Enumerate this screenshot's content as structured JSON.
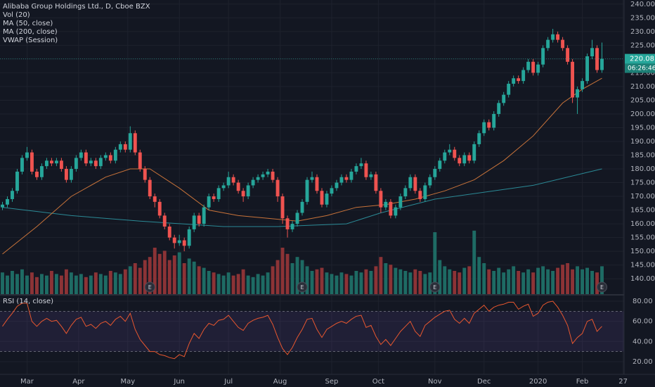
{
  "chart_data": {
    "type": "candlestick",
    "title": "Alibaba Group Holdings Ltd., D, Cboe BZX",
    "indicators": [
      "Vol (20)",
      "MA (50, close)",
      "MA (200, close)",
      "VWAP (Session)"
    ],
    "up_color": "#26a69a",
    "down_color": "#ef5350",
    "volume_up_color": "#1e6b64",
    "volume_down_color": "#8c3336",
    "xlim": [
      -0.5,
      126.5
    ],
    "xticks": [
      {
        "value": 5,
        "label": "Mar"
      },
      {
        "value": 15.5,
        "label": "Apr"
      },
      {
        "value": 25.5,
        "label": "May"
      },
      {
        "value": 36,
        "label": "Jun"
      },
      {
        "value": 46,
        "label": "Jul"
      },
      {
        "value": 56.5,
        "label": "Aug"
      },
      {
        "value": 67,
        "label": "Sep"
      },
      {
        "value": 76.5,
        "label": "Oct"
      },
      {
        "value": 88,
        "label": "Nov"
      },
      {
        "value": 98,
        "label": "Dec"
      },
      {
        "value": 109,
        "label": "2020"
      },
      {
        "value": 118,
        "label": "Feb"
      },
      {
        "value": 126.3,
        "label": "27"
      }
    ],
    "ylim": [
      134.4,
      241.5
    ],
    "yticks": [
      {
        "value": 140,
        "label": "140.00"
      },
      {
        "value": 145,
        "label": "145.00"
      },
      {
        "value": 150,
        "label": "150.00"
      },
      {
        "value": 155,
        "label": "155.00"
      },
      {
        "value": 160,
        "label": "160.00"
      },
      {
        "value": 165,
        "label": "165.00"
      },
      {
        "value": 170,
        "label": "170.00"
      },
      {
        "value": 175,
        "label": "175.00"
      },
      {
        "value": 180,
        "label": "180.00"
      },
      {
        "value": 185,
        "label": "185.00"
      },
      {
        "value": 190,
        "label": "190.00"
      },
      {
        "value": 195,
        "label": "195.00"
      },
      {
        "value": 200,
        "label": "200.00"
      },
      {
        "value": 205,
        "label": "205.00"
      },
      {
        "value": 210,
        "label": "210.00"
      },
      {
        "value": 215,
        "label": "215.00"
      },
      {
        "value": 220,
        "label": "220.00"
      },
      {
        "value": 225,
        "label": "225.00"
      },
      {
        "value": 230,
        "label": "230.00"
      },
      {
        "value": 235,
        "label": "235.00"
      },
      {
        "value": 240,
        "label": "240.00"
      }
    ],
    "grid": true,
    "candles": [
      [
        166,
        168,
        165,
        167
      ],
      [
        167,
        170,
        166,
        169
      ],
      [
        169,
        173,
        168,
        172
      ],
      [
        172,
        180,
        171,
        179
      ],
      [
        179,
        185,
        178,
        184
      ],
      [
        184,
        188,
        183,
        186
      ],
      [
        186,
        187,
        178,
        179
      ],
      [
        179,
        180,
        176,
        177
      ],
      [
        177,
        182,
        176,
        181
      ],
      [
        181,
        184,
        180,
        183
      ],
      [
        183,
        184,
        181,
        182
      ],
      [
        182,
        184,
        181,
        183
      ],
      [
        183,
        184,
        179,
        180
      ],
      [
        180,
        181,
        175,
        176
      ],
      [
        176,
        181,
        175,
        180
      ],
      [
        180,
        185,
        179,
        184
      ],
      [
        184,
        187,
        183,
        186
      ],
      [
        186,
        187,
        181,
        182
      ],
      [
        182,
        184,
        181,
        183
      ],
      [
        183,
        184,
        180,
        181
      ],
      [
        181,
        185,
        180,
        184
      ],
      [
        184,
        186,
        183,
        185
      ],
      [
        185,
        186,
        182,
        183
      ],
      [
        183,
        188,
        182,
        187
      ],
      [
        187,
        190,
        186,
        189
      ],
      [
        189,
        190,
        186,
        187
      ],
      [
        187,
        195.5,
        186,
        193
      ],
      [
        193,
        194,
        185,
        186
      ],
      [
        186,
        187,
        179,
        180
      ],
      [
        180,
        181,
        175,
        176
      ],
      [
        176,
        177,
        169,
        170
      ],
      [
        170,
        171,
        166,
        168
      ],
      [
        168,
        169,
        162,
        163
      ],
      [
        163,
        164,
        158,
        159
      ],
      [
        159,
        160,
        154,
        155
      ],
      [
        155,
        156,
        151,
        153
      ],
      [
        153,
        156,
        152,
        154
      ],
      [
        154,
        155,
        150,
        152
      ],
      [
        152,
        159,
        151,
        158
      ],
      [
        158,
        164,
        157,
        163
      ],
      [
        163,
        164,
        159,
        160
      ],
      [
        160,
        167,
        159,
        166
      ],
      [
        166,
        171,
        165,
        170
      ],
      [
        170,
        171,
        168,
        169
      ],
      [
        169,
        174,
        168,
        173
      ],
      [
        173,
        175,
        172,
        174
      ],
      [
        174,
        179,
        173,
        177
      ],
      [
        177,
        178,
        174,
        175
      ],
      [
        175,
        176,
        171,
        172
      ],
      [
        172,
        173,
        168,
        170
      ],
      [
        170,
        175,
        169,
        174
      ],
      [
        174,
        177,
        173,
        176
      ],
      [
        176,
        178,
        175,
        177
      ],
      [
        177,
        179,
        176,
        178
      ],
      [
        178,
        180,
        177,
        179
      ],
      [
        179,
        180,
        175,
        176
      ],
      [
        176,
        177,
        168,
        170
      ],
      [
        170,
        171,
        160,
        162
      ],
      [
        162,
        163,
        155,
        158
      ],
      [
        158,
        161,
        157,
        160
      ],
      [
        160,
        165,
        159,
        164
      ],
      [
        164,
        169,
        163,
        168
      ],
      [
        168,
        177,
        167,
        176
      ],
      [
        176,
        179,
        175,
        177
      ],
      [
        177,
        178,
        171,
        172
      ],
      [
        172,
        173,
        166,
        167
      ],
      [
        167,
        172,
        166,
        171
      ],
      [
        171,
        174,
        170,
        173
      ],
      [
        173,
        176,
        172,
        175
      ],
      [
        175,
        178,
        174,
        177
      ],
      [
        177,
        178,
        175,
        176
      ],
      [
        176,
        180,
        175,
        179
      ],
      [
        179,
        182,
        178,
        181
      ],
      [
        181,
        184,
        180,
        182
      ],
      [
        182,
        183,
        176,
        177
      ],
      [
        177,
        179,
        176,
        178
      ],
      [
        178,
        179,
        171,
        172
      ],
      [
        172,
        173,
        164,
        166
      ],
      [
        166,
        169,
        165,
        168
      ],
      [
        168,
        169,
        162,
        163
      ],
      [
        163,
        167,
        162,
        166
      ],
      [
        166,
        171,
        165,
        170
      ],
      [
        170,
        174,
        169,
        173
      ],
      [
        173,
        178,
        172,
        177
      ],
      [
        177,
        178,
        171,
        172
      ],
      [
        172,
        173,
        168,
        169
      ],
      [
        169,
        175,
        168,
        174
      ],
      [
        174,
        178,
        173,
        177
      ],
      [
        177,
        181,
        176,
        180
      ],
      [
        180,
        184,
        179,
        183
      ],
      [
        183,
        187,
        182,
        186
      ],
      [
        186,
        189,
        185,
        187
      ],
      [
        187,
        188,
        183,
        184
      ],
      [
        184,
        185,
        181,
        182
      ],
      [
        182,
        186,
        181,
        185
      ],
      [
        185,
        186,
        182,
        183
      ],
      [
        183,
        190,
        182,
        189
      ],
      [
        189,
        194,
        188,
        193
      ],
      [
        193,
        198,
        192,
        197
      ],
      [
        197,
        198,
        194,
        195
      ],
      [
        195,
        201,
        194,
        200
      ],
      [
        200,
        205,
        199,
        204
      ],
      [
        204,
        208,
        203,
        207
      ],
      [
        207,
        212,
        206,
        211
      ],
      [
        211,
        214,
        210,
        213
      ],
      [
        213,
        214,
        211,
        212
      ],
      [
        212,
        217,
        211,
        216
      ],
      [
        216,
        220,
        215,
        219
      ],
      [
        219,
        220,
        214,
        215
      ],
      [
        215,
        219,
        214,
        218
      ],
      [
        218,
        225,
        217,
        224
      ],
      [
        224,
        228,
        223,
        227
      ],
      [
        227,
        231,
        226,
        229
      ],
      [
        229,
        230,
        226,
        227
      ],
      [
        227,
        228,
        223,
        224
      ],
      [
        224,
        225,
        218,
        219
      ],
      [
        219,
        220,
        204,
        206
      ],
      [
        206,
        210,
        200,
        209
      ],
      [
        209,
        213,
        208,
        212
      ],
      [
        212,
        222,
        211,
        221
      ],
      [
        221,
        227,
        220,
        224
      ],
      [
        224,
        225,
        215,
        216
      ],
      [
        216,
        226,
        215,
        220.08
      ]
    ],
    "volume": {
      "ylim": [
        0,
        50
      ],
      "values": [
        14,
        12,
        15,
        13,
        16,
        12,
        14,
        11,
        13,
        12,
        15,
        13,
        12,
        16,
        14,
        12,
        13,
        11,
        12,
        14,
        13,
        12,
        15,
        14,
        13,
        16,
        18,
        20,
        17,
        22,
        24,
        30,
        26,
        28,
        22,
        25,
        27,
        20,
        23,
        21,
        18,
        17,
        15,
        14,
        13,
        12,
        14,
        12,
        13,
        16,
        12,
        11,
        13,
        12,
        14,
        18,
        22,
        30,
        26,
        20,
        24,
        22,
        18,
        15,
        16,
        17,
        14,
        13,
        12,
        14,
        13,
        12,
        15,
        14,
        16,
        15,
        18,
        24,
        20,
        19,
        17,
        16,
        15,
        14,
        16,
        15,
        13,
        14,
        40,
        22,
        18,
        16,
        15,
        14,
        17,
        18,
        41,
        24,
        20,
        16,
        15,
        17,
        14,
        16,
        18,
        15,
        14,
        16,
        14,
        17,
        18,
        16,
        15,
        17,
        19,
        20,
        16,
        18,
        16,
        17,
        15,
        14,
        18
      ]
    },
    "ma50": {
      "color": "#c8733a",
      "x": [
        0,
        7,
        14,
        21,
        26,
        30,
        36,
        42,
        48,
        54,
        60,
        66,
        72,
        78,
        84,
        90,
        96,
        102,
        108,
        114,
        118,
        122
      ],
      "values": [
        149,
        159,
        170,
        177,
        180,
        180,
        173,
        165,
        163,
        162,
        161,
        163,
        166,
        167,
        169,
        172,
        176,
        183,
        192,
        204,
        209,
        213
      ]
    },
    "ma200": {
      "color": "#2b8a96",
      "x": [
        0,
        14,
        28,
        45,
        56,
        70,
        77,
        88,
        108,
        122
      ],
      "values": [
        166,
        163,
        161,
        159,
        159,
        160,
        164,
        169,
        174,
        180
      ]
    },
    "countdown": "06:26:46",
    "last_price_color": "#26a69a",
    "earnings": {
      "label": "E",
      "x": [
        30,
        61,
        88,
        122
      ]
    },
    "rsi": {
      "title": "RSI (14, close)",
      "color": "#e8572f",
      "band_color": "#7e57c2",
      "ylim": [
        7.4,
        85.6
      ],
      "band": [
        30,
        70
      ],
      "yticks": [
        {
          "value": 20,
          "label": "20.00"
        },
        {
          "value": 40,
          "label": "40.00"
        },
        {
          "value": 60,
          "label": "60.00"
        },
        {
          "value": 80,
          "label": "80.00"
        }
      ],
      "values": [
        55,
        62,
        68,
        75,
        78,
        78,
        60,
        55,
        60,
        63,
        60,
        61,
        55,
        48,
        56,
        62,
        64,
        55,
        57,
        53,
        58,
        60,
        56,
        62,
        65,
        60,
        68,
        52,
        42,
        36,
        30,
        30,
        27,
        26,
        24,
        23,
        27,
        25,
        38,
        48,
        43,
        52,
        58,
        56,
        61,
        62,
        66,
        60,
        54,
        51,
        58,
        61,
        63,
        64,
        66,
        57,
        44,
        33,
        27,
        34,
        44,
        52,
        62,
        63,
        52,
        44,
        52,
        55,
        58,
        60,
        58,
        62,
        65,
        66,
        54,
        56,
        45,
        37,
        42,
        36,
        43,
        50,
        55,
        60,
        50,
        45,
        56,
        60,
        64,
        67,
        70,
        71,
        62,
        58,
        63,
        58,
        68,
        72,
        76,
        70,
        74,
        76,
        77,
        79,
        79,
        72,
        75,
        77,
        65,
        68,
        76,
        79,
        80,
        74,
        66,
        56,
        38,
        44,
        48,
        60,
        62,
        50,
        55
      ]
    }
  }
}
